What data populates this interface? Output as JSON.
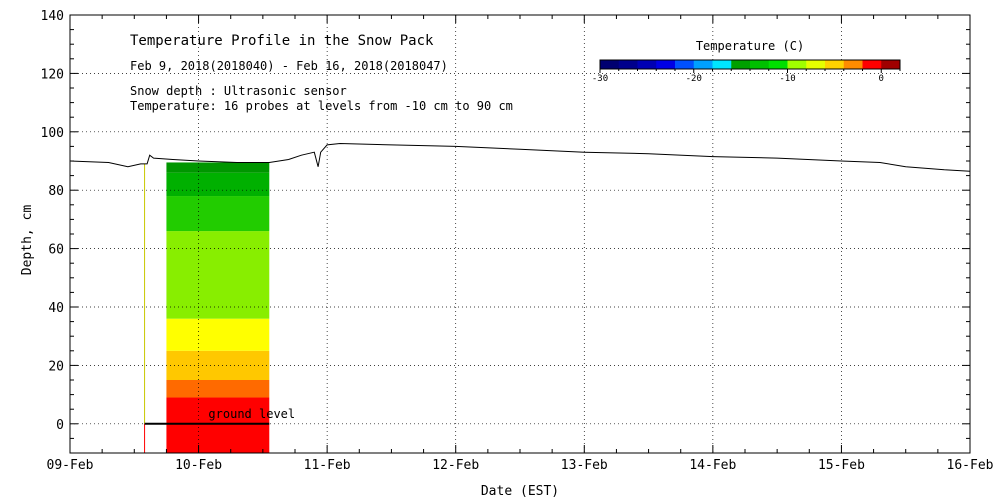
{
  "chart_data": {
    "type": "area",
    "title": "Temperature Profile in the Snow Pack",
    "subtitle": "Feb  9, 2018(2018040) - Feb 16, 2018(2018047)",
    "notes": [
      "Snow depth : Ultrasonic sensor",
      "Temperature: 16 probes at levels from -10 cm to 90 cm"
    ],
    "xlabel": "Date (EST)",
    "ylabel": "Depth, cm",
    "x_ticks": [
      "09-Feb",
      "10-Feb",
      "11-Feb",
      "12-Feb",
      "13-Feb",
      "14-Feb",
      "15-Feb",
      "16-Feb"
    ],
    "xlim": [
      0,
      7
    ],
    "ylim": [
      -10,
      140
    ],
    "y_ticks": [
      0,
      20,
      40,
      60,
      80,
      100,
      120,
      140
    ],
    "grid": true,
    "ground_label": "ground level",
    "colorbar": {
      "title": "Temperature (C)",
      "ticks": [
        -30,
        -20,
        -10,
        0
      ],
      "range": [
        -30,
        2
      ],
      "colors": [
        "#000070",
        "#00008c",
        "#0000b4",
        "#0000e6",
        "#0050ff",
        "#00a0ff",
        "#00e6ff",
        "#00a000",
        "#00c000",
        "#00e000",
        "#a0ff00",
        "#e6ff00",
        "#ffd200",
        "#ff8c00",
        "#ff0000",
        "#a00000"
      ]
    },
    "snow_depth_series": {
      "name": "Snow depth",
      "x": [
        0.0,
        0.3,
        0.45,
        0.55,
        0.6,
        0.62,
        0.65,
        0.8,
        1.0,
        1.3,
        1.55,
        1.7,
        1.8,
        1.9,
        1.93,
        1.95,
        2.0,
        2.1,
        2.5,
        3.0,
        3.5,
        4.0,
        4.5,
        5.0,
        5.5,
        6.0,
        6.3,
        6.5,
        6.8,
        7.0
      ],
      "y": [
        90,
        89.5,
        88,
        89,
        89,
        92,
        91,
        90.5,
        90,
        89.5,
        89.5,
        90.5,
        92,
        93,
        88,
        93,
        95.5,
        96,
        95.5,
        95,
        94,
        93,
        92.5,
        91.5,
        91,
        90,
        89.5,
        88,
        87,
        86.5
      ]
    },
    "temperature_bands": {
      "x_start": 0.75,
      "x_end": 1.55,
      "start_marker_x": 0.58,
      "levels": [
        {
          "from": -10,
          "to": 9,
          "temperature": 0,
          "color": "#ff0000"
        },
        {
          "from": 9,
          "to": 15,
          "temperature": -1,
          "color": "#ff6a00"
        },
        {
          "from": 15,
          "to": 25,
          "temperature": -2,
          "color": "#ffc800"
        },
        {
          "from": 25,
          "to": 36,
          "temperature": -3,
          "color": "#ffff00"
        },
        {
          "from": 36,
          "to": 66,
          "temperature": -5,
          "color": "#88ee00"
        },
        {
          "from": 66,
          "to": 78,
          "temperature": -7,
          "color": "#22cc00"
        },
        {
          "from": 78,
          "to": 86,
          "temperature": -8,
          "color": "#00b000"
        },
        {
          "from": 86,
          "to": 90,
          "temperature": -9,
          "color": "#009600"
        }
      ]
    }
  }
}
